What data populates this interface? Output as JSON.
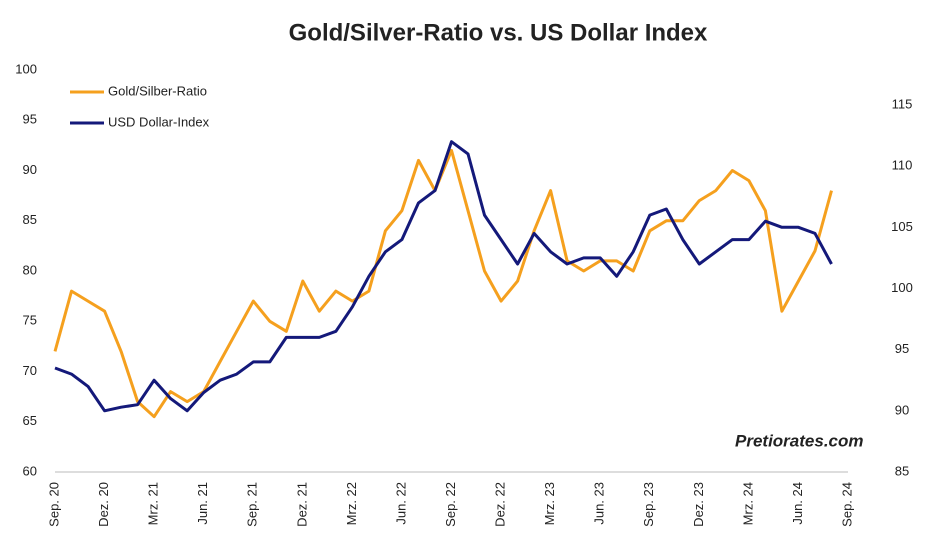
{
  "chart_data": {
    "type": "line",
    "title": "Gold/Silver-Ratio vs. US Dollar Index",
    "annotation": "Pretiorates.com",
    "categories": [
      "Sep. 20",
      null,
      null,
      "Dez. 20",
      null,
      null,
      "Mrz. 21",
      null,
      null,
      "Jun. 21",
      null,
      null,
      "Sep. 21",
      null,
      null,
      "Dez. 21",
      null,
      null,
      "Mrz. 22",
      null,
      null,
      "Jun. 22",
      null,
      null,
      "Sep. 22",
      null,
      null,
      "Dez. 22",
      null,
      null,
      "Mrz. 23",
      null,
      null,
      "Jun. 23",
      null,
      null,
      "Sep. 23",
      null,
      null,
      "Dez. 23",
      null,
      null,
      "Mrz. 24",
      null,
      null,
      "Jun. 24",
      null,
      null,
      "Sep. 24"
    ],
    "series": [
      {
        "name": "Gold/Silber-Ratio",
        "color": "#f5a01e",
        "values": [
          72,
          78,
          77,
          76,
          72,
          67,
          65.5,
          68,
          67,
          68,
          71,
          74,
          77,
          75,
          74,
          79,
          76,
          78,
          77,
          78,
          84,
          86,
          91,
          88,
          92,
          86,
          80,
          77,
          79,
          84,
          88,
          81,
          80,
          81,
          81,
          80,
          84,
          85,
          85,
          87,
          88,
          90,
          89,
          86,
          76,
          79,
          82,
          88,
          null
        ]
      },
      {
        "name": "USD Dollar-Index",
        "color": "#14197a",
        "axis": "y2",
        "values": [
          93.5,
          93,
          92,
          90,
          90.3,
          90.5,
          92.5,
          91,
          90,
          91.5,
          92.5,
          93,
          94,
          94,
          96,
          96,
          96,
          96.5,
          98.5,
          101,
          103,
          104,
          107,
          108,
          112,
          111,
          106,
          104,
          102,
          104.5,
          103,
          102,
          102.5,
          102.5,
          101,
          103,
          106,
          106.5,
          104,
          102,
          103,
          104,
          104,
          105.5,
          105,
          105,
          104.5,
          102,
          null
        ]
      }
    ],
    "ylim": [
      60,
      100
    ],
    "yticks": [
      60,
      65,
      70,
      75,
      80,
      85,
      90,
      95,
      100
    ],
    "y2lim": [
      85,
      117.86
    ],
    "y2ticks": [
      85,
      90,
      95,
      100,
      105,
      110,
      115
    ],
    "legend": "top-left"
  }
}
